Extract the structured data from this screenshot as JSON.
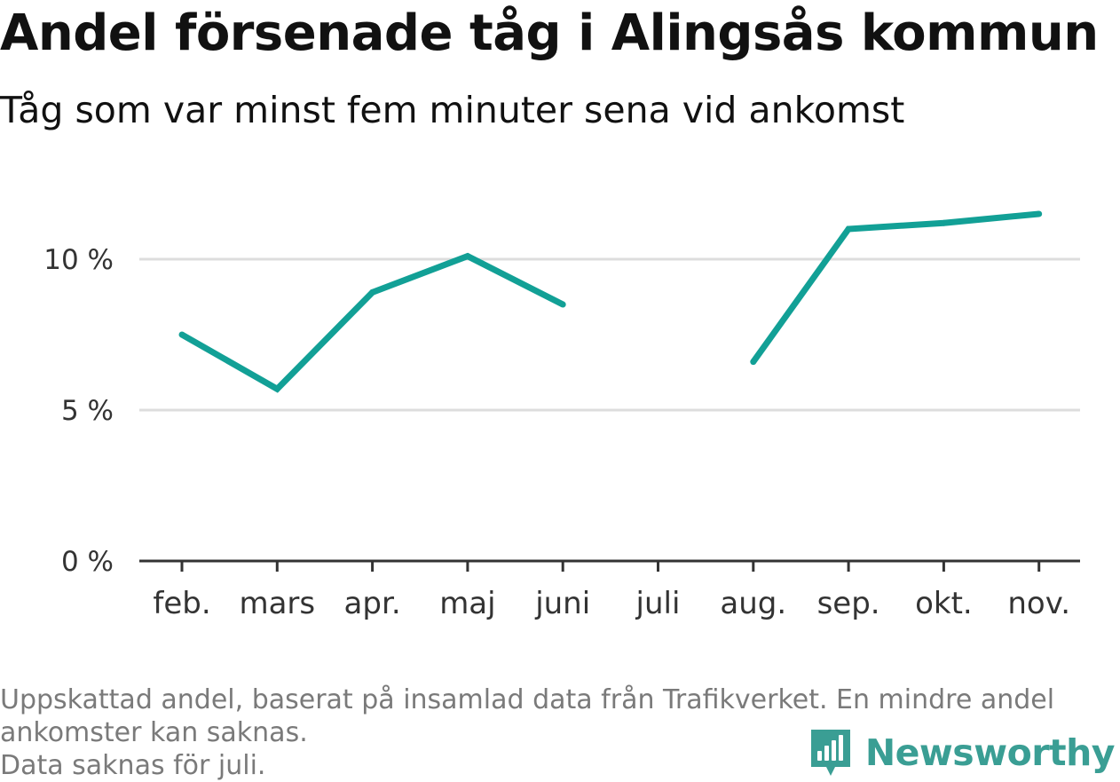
{
  "header": {
    "title": "Andel försenade tåg i Alingsås kommun",
    "subtitle": "Tåg som var minst fem minuter sena vid ankomst"
  },
  "footer": {
    "note_line1": "Uppskattad andel, baserat på insamlad data från Trafikverket. En mindre andel",
    "note_line2": "ankomster kan saknas.",
    "note_line3": "Data saknas för juli.",
    "brand": "Newsworthy"
  },
  "colors": {
    "line": "#12a096",
    "grid": "#dddddd",
    "axis": "#333333",
    "brand": "#3a9e94"
  },
  "chart_data": {
    "type": "line",
    "categories": [
      "feb.",
      "mars",
      "apr.",
      "maj",
      "juni",
      "juli",
      "aug.",
      "sep.",
      "okt.",
      "nov."
    ],
    "series": [
      {
        "values": [
          7.5,
          5.7,
          8.9,
          10.1,
          8.5,
          null,
          6.6,
          11.0,
          11.2,
          11.5
        ]
      }
    ],
    "ylim": [
      0,
      12
    ],
    "yticks": [
      0,
      5,
      10
    ],
    "ytick_labels": [
      "0 %",
      "5 %",
      "10 %"
    ],
    "grid": true,
    "xlabel": "",
    "ylabel": ""
  }
}
